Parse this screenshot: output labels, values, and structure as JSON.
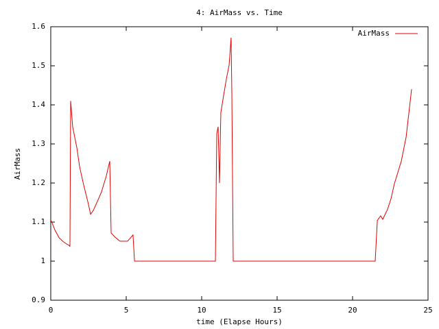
{
  "chart_data": {
    "type": "line",
    "title": "4: AirMass vs. Time",
    "x_label": "time (Elapse Hours)",
    "y_label": "AirMass",
    "x": [
      0,
      0.09,
      0.27,
      0.55,
      0.82,
      1.09,
      1.23,
      1.27,
      1.32,
      1.45,
      1.73,
      1.91,
      2.18,
      2.45,
      2.64,
      2.82,
      3.09,
      3.36,
      3.68,
      3.91,
      4.0,
      4.27,
      4.59,
      5.09,
      5.45,
      5.55,
      10.91,
      11.0,
      11.09,
      11.14,
      11.18,
      11.27,
      11.45,
      11.64,
      11.82,
      11.95,
      12.0,
      12.09,
      21.5,
      21.64,
      21.86,
      22.0,
      22.32,
      22.55,
      22.77,
      23.23,
      23.55,
      23.91
    ],
    "series": [
      {
        "name": "AirMass",
        "color": "#e00000",
        "values": [
          1.105,
          1.098,
          1.08,
          1.06,
          1.05,
          1.043,
          1.04,
          1.037,
          1.41,
          1.344,
          1.29,
          1.242,
          1.195,
          1.153,
          1.12,
          1.13,
          1.153,
          1.177,
          1.218,
          1.256,
          1.072,
          1.061,
          1.051,
          1.051,
          1.067,
          1.0,
          1.0,
          1.326,
          1.344,
          1.265,
          1.2,
          1.38,
          1.423,
          1.467,
          1.502,
          1.572,
          1.43,
          1.0,
          1.0,
          1.104,
          1.116,
          1.107,
          1.133,
          1.16,
          1.198,
          1.256,
          1.318,
          1.44
        ]
      }
    ],
    "xlim": [
      0,
      25
    ],
    "xticks": [
      0,
      5,
      10,
      15,
      20,
      25
    ],
    "ylim": [
      0.9,
      1.6
    ],
    "yticks": [
      0.9,
      1,
      1.1,
      1.2,
      1.3,
      1.4,
      1.5,
      1.6
    ],
    "legend": "top-right",
    "grid": false
  }
}
